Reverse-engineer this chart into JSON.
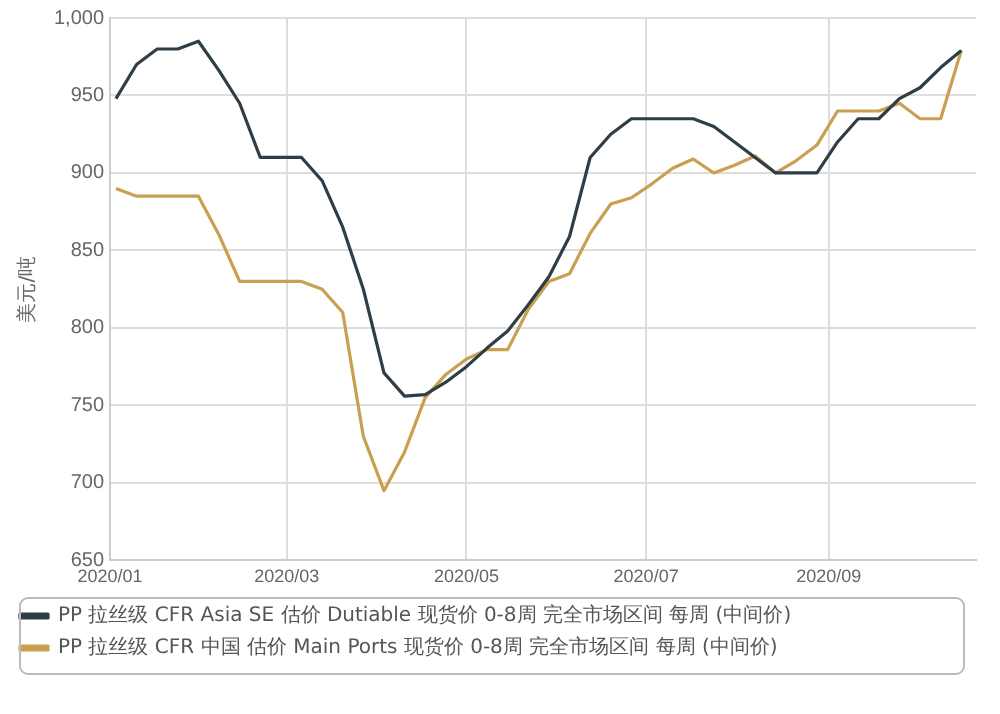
{
  "chart_data": {
    "type": "line",
    "ylabel": "美元/吨",
    "x": [
      "2020-01-03",
      "2020-01-10",
      "2020-01-17",
      "2020-01-24",
      "2020-01-31",
      "2020-02-07",
      "2020-02-14",
      "2020-02-21",
      "2020-02-28",
      "2020-03-06",
      "2020-03-13",
      "2020-03-20",
      "2020-03-27",
      "2020-04-03",
      "2020-04-10",
      "2020-04-17",
      "2020-04-24",
      "2020-05-01",
      "2020-05-08",
      "2020-05-15",
      "2020-05-22",
      "2020-05-29",
      "2020-06-05",
      "2020-06-12",
      "2020-06-19",
      "2020-06-26",
      "2020-07-03",
      "2020-07-10",
      "2020-07-17",
      "2020-07-24",
      "2020-07-31",
      "2020-08-07",
      "2020-08-14",
      "2020-08-21",
      "2020-08-28",
      "2020-09-04",
      "2020-09-11",
      "2020-09-18",
      "2020-09-25",
      "2020-10-02",
      "2020-10-09",
      "2020-10-16"
    ],
    "series": [
      {
        "name": "PP 拉丝级 CFR Asia SE 估价 Dutiable 现货价 0-8周 完全市场区间 每周 (中间价)",
        "color": "#2f3e46",
        "values": [
          948,
          970,
          980,
          980,
          985,
          966,
          945,
          910,
          910,
          910,
          895,
          865,
          825,
          771,
          756,
          757,
          765,
          775,
          787,
          798,
          815,
          833,
          859,
          910,
          925,
          935,
          935,
          935,
          935,
          930,
          920,
          910,
          900,
          900,
          900,
          920,
          935,
          935,
          948,
          955,
          968,
          979
        ]
      },
      {
        "name": "PP 拉丝级 CFR 中国 估价 Main Ports 现货价 0-8周 完全市场区间 每周 (中间价)",
        "color": "#c8a050",
        "values": [
          890,
          885,
          885,
          885,
          885,
          860,
          830,
          830,
          830,
          830,
          825,
          810,
          730,
          695,
          720,
          755,
          770,
          780,
          786,
          786,
          812,
          830,
          835,
          861,
          880,
          884,
          893,
          903,
          909,
          900,
          905,
          911,
          900,
          908,
          918,
          940,
          940,
          940,
          945,
          935,
          935,
          979
        ]
      }
    ],
    "xlim": [
      "2020-01-01",
      "2020-10-21"
    ],
    "xticks": [
      {
        "value": "2020-01-01",
        "label": "2020/01"
      },
      {
        "value": "2020-03-01",
        "label": "2020/03"
      },
      {
        "value": "2020-05-01",
        "label": "2020/05"
      },
      {
        "value": "2020-07-01",
        "label": "2020/07"
      },
      {
        "value": "2020-09-01",
        "label": "2020/09"
      }
    ],
    "ylim": [
      650,
      1000
    ],
    "yticks": [
      650,
      700,
      750,
      800,
      850,
      900,
      950,
      {
        "value": 1000,
        "label": "1,000"
      }
    ],
    "grid": true,
    "legend": "bottom",
    "marker": "none",
    "line_style": "solid"
  }
}
